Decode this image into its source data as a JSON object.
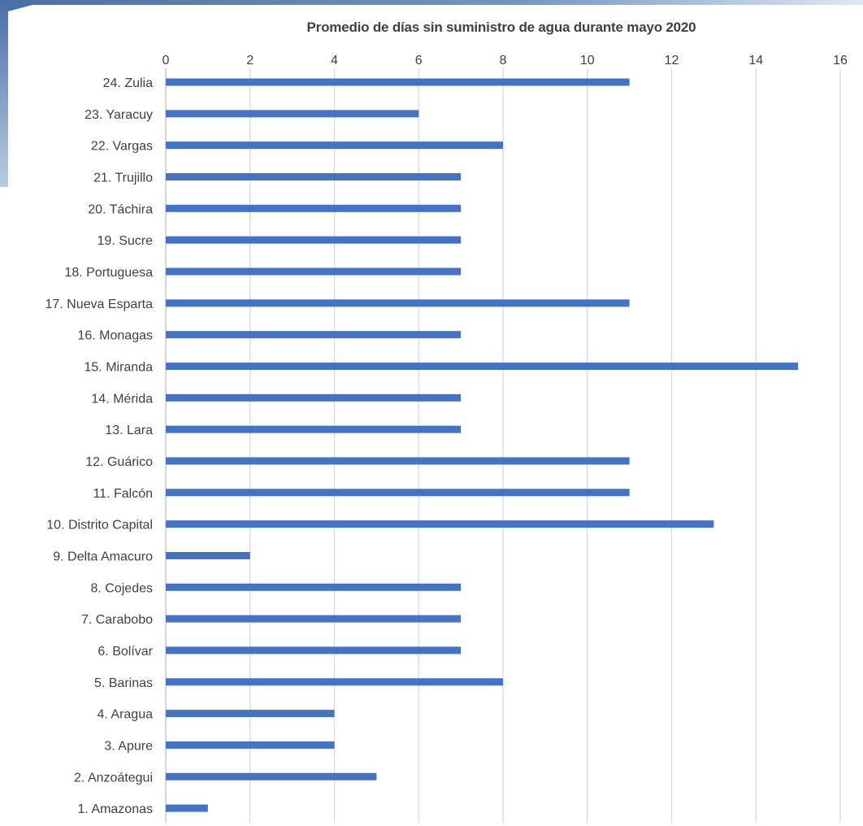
{
  "colors": {
    "bar": "#4472c4",
    "grid": "#d9d9d9",
    "text": "#404040",
    "frame": "#4f81bd"
  },
  "chart_data": {
    "type": "bar",
    "orientation": "horizontal",
    "title": "Promedio de días sin suministro de agua durante mayo 2020",
    "xlim": [
      0,
      16
    ],
    "x_ticks": [
      0,
      2,
      4,
      6,
      8,
      10,
      12,
      14,
      16
    ],
    "x_axis_position": "top",
    "grid": true,
    "legend": "none",
    "categories": [
      "24. Zulia",
      "23. Yaracuy",
      "22. Vargas",
      "21. Trujillo",
      "20. Táchira",
      "19. Sucre",
      "18. Portuguesa",
      "17. Nueva Esparta",
      "16. Monagas",
      "15. Miranda",
      "14. Mérida",
      "13. Lara",
      "12. Guárico",
      "11. Falcón",
      "10. Distrito Capital",
      "9. Delta Amacuro",
      "8. Cojedes",
      "7. Carabobo",
      "6. Bolívar",
      "5. Barinas",
      "4. Aragua",
      "3. Apure",
      "2. Anzoátegui",
      "1. Amazonas"
    ],
    "values": [
      11,
      6,
      8,
      7,
      7,
      7,
      7,
      11,
      7,
      15,
      7,
      7,
      11,
      11,
      13,
      2,
      7,
      7,
      7,
      8,
      4,
      4,
      5,
      1
    ]
  }
}
